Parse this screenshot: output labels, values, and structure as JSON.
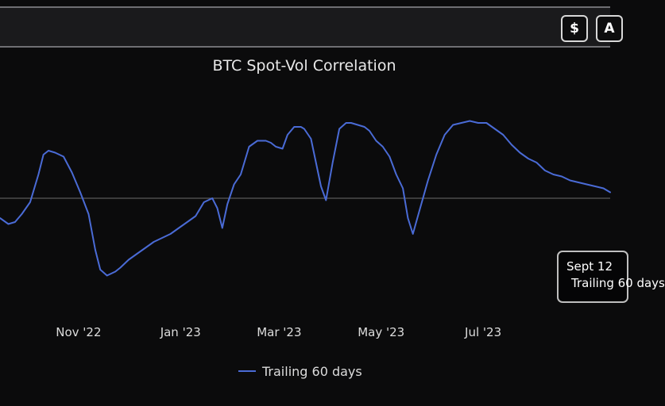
{
  "toolbar": {
    "currency_label": "$",
    "second_button_label": "A"
  },
  "chart_data": {
    "type": "line",
    "title": "BTC Spot-Vol Correlation",
    "xlabel": "",
    "ylabel": "",
    "x_tick_labels": [
      "Nov '22",
      "Jan '23",
      "Mar '23",
      "May '23",
      "Jul '23"
    ],
    "x_ticks": [
      "2022-11-01",
      "2023-01-01",
      "2023-03-01",
      "2023-05-01",
      "2023-07-01"
    ],
    "xlim": [
      "2022-09-15",
      "2023-09-15"
    ],
    "ylim": [
      -0.6,
      0.6
    ],
    "y_tick_labels_visible": false,
    "zero_line": true,
    "grid": false,
    "legend_position": "bottom-center",
    "series": [
      {
        "name": "Trailing 60 days",
        "color": "#4a6bd6",
        "x": [
          "2022-09-15",
          "2022-09-20",
          "2022-09-24",
          "2022-09-28",
          "2022-10-03",
          "2022-10-08",
          "2022-10-11",
          "2022-10-14",
          "2022-10-18",
          "2022-10-23",
          "2022-10-28",
          "2022-11-02",
          "2022-11-07",
          "2022-11-11",
          "2022-11-14",
          "2022-11-18",
          "2022-11-23",
          "2022-11-26",
          "2022-12-01",
          "2022-12-06",
          "2022-12-11",
          "2022-12-16",
          "2022-12-21",
          "2022-12-26",
          "2022-12-31",
          "2023-01-05",
          "2023-01-10",
          "2023-01-15",
          "2023-01-20",
          "2023-01-23",
          "2023-01-26",
          "2023-01-29",
          "2023-02-02",
          "2023-02-06",
          "2023-02-11",
          "2023-02-16",
          "2023-02-21",
          "2023-02-24",
          "2023-02-27",
          "2023-03-03",
          "2023-03-06",
          "2023-03-10",
          "2023-03-14",
          "2023-03-16",
          "2023-03-20",
          "2023-03-26",
          "2023-03-29",
          "2023-04-02",
          "2023-04-06",
          "2023-04-10",
          "2023-04-13",
          "2023-04-17",
          "2023-04-21",
          "2023-04-24",
          "2023-04-28",
          "2023-05-02",
          "2023-05-06",
          "2023-05-10",
          "2023-05-14",
          "2023-05-17",
          "2023-05-20",
          "2023-05-24",
          "2023-05-29",
          "2023-06-03",
          "2023-06-08",
          "2023-06-13",
          "2023-06-18",
          "2023-06-23",
          "2023-06-28",
          "2023-07-03",
          "2023-07-08",
          "2023-07-13",
          "2023-07-18",
          "2023-07-23",
          "2023-07-28",
          "2023-08-02",
          "2023-08-07",
          "2023-08-12",
          "2023-08-17",
          "2023-08-22",
          "2023-08-27",
          "2023-09-01",
          "2023-09-06",
          "2023-09-11",
          "2023-09-15"
        ],
        "y": [
          -0.1,
          -0.13,
          -0.12,
          -0.08,
          -0.02,
          0.12,
          0.22,
          0.24,
          0.23,
          0.21,
          0.13,
          0.03,
          -0.08,
          -0.26,
          -0.36,
          -0.39,
          -0.37,
          -0.35,
          -0.31,
          -0.28,
          -0.25,
          -0.22,
          -0.2,
          -0.18,
          -0.15,
          -0.12,
          -0.09,
          -0.02,
          0.0,
          -0.05,
          -0.15,
          -0.03,
          0.07,
          0.12,
          0.26,
          0.29,
          0.29,
          0.28,
          0.26,
          0.25,
          0.32,
          0.36,
          0.36,
          0.35,
          0.3,
          0.06,
          -0.01,
          0.18,
          0.35,
          0.38,
          0.38,
          0.37,
          0.36,
          0.34,
          0.29,
          0.26,
          0.21,
          0.12,
          0.05,
          -0.1,
          -0.18,
          -0.06,
          0.09,
          0.22,
          0.32,
          0.37,
          0.38,
          0.39,
          0.38,
          0.38,
          0.35,
          0.32,
          0.27,
          0.23,
          0.2,
          0.18,
          0.14,
          0.12,
          0.11,
          0.09,
          0.08,
          0.07,
          0.06,
          0.05,
          0.03
        ]
      }
    ]
  },
  "tooltip": {
    "date": "Sept 12",
    "series_label": "Trailing 60 days"
  }
}
